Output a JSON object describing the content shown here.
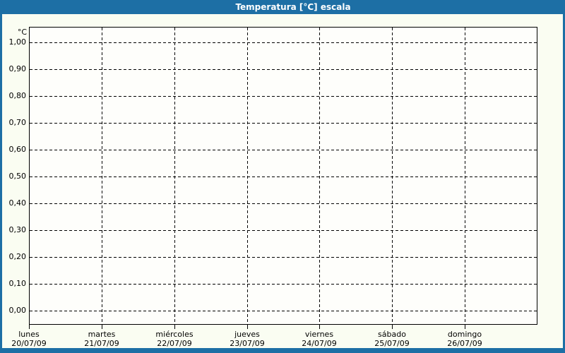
{
  "title_bar": {
    "text": "Temperatura [°C] escala"
  },
  "colors": {
    "frame": "#1d6fa5",
    "title_text": "#ffffff",
    "canvas_bg": "#fafdf2",
    "plot_bg": "#fefefb",
    "axis": "#000000",
    "grid": "#000000",
    "label_text": "#000000"
  },
  "chart_data": {
    "type": "line",
    "title": "Temperatura [°C] escala",
    "xlabel": "",
    "ylabel": "°C",
    "ylim": [
      0.0,
      1.0
    ],
    "y_tick_interval": 0.1,
    "y_tick_labels": [
      "1,00",
      "0,90",
      "0,80",
      "0,70",
      "0,60",
      "0,50",
      "0,40",
      "0,30",
      "0,20",
      "0,10",
      "0,00"
    ],
    "x_tick_labels": [
      {
        "day": "lunes",
        "date": "20/07/09"
      },
      {
        "day": "martes",
        "date": "21/07/09"
      },
      {
        "day": "miércoles",
        "date": "22/07/09"
      },
      {
        "day": "jueves",
        "date": "23/07/09"
      },
      {
        "day": "viernes",
        "date": "24/07/09"
      },
      {
        "day": "sábado",
        "date": "25/07/09"
      },
      {
        "day": "domingo",
        "date": "26/07/09"
      }
    ],
    "series": [],
    "grid": {
      "horizontal": "dashed",
      "vertical": "dashed"
    },
    "legend_position": "none"
  }
}
